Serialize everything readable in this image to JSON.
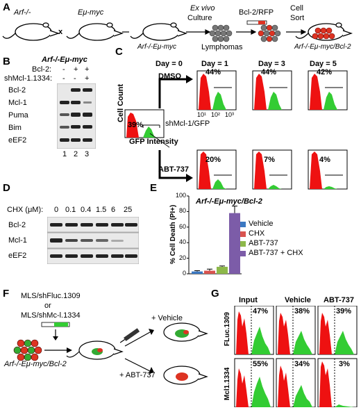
{
  "panelA": {
    "label": "A",
    "mouse1": "Arf-/-",
    "cross": "x",
    "mouse2": "Eμ-myc",
    "mouse3": "Arf-/-Eμ-myc",
    "step1": "Ex vivo",
    "step1b": "Culture",
    "lymphomas": "Lymphomas",
    "step2": "Bcl-2/RFP",
    "step3": "Cell",
    "step3b": "Sort",
    "result": "Arf-/-Eμ-myc/Bcl-2"
  },
  "panelB": {
    "label": "B",
    "title": "Arf-/-Eμ-myc",
    "row_bcl2": "Bcl-2:",
    "row_sh": "shMcl-1.1334:",
    "bcl2_signs": [
      "-",
      "+",
      "+"
    ],
    "sh_signs": [
      "-",
      "-",
      "+"
    ],
    "blots": [
      "Bcl-2",
      "Mcl-1",
      "Puma",
      "Bim",
      "eEF2"
    ],
    "lanes": [
      "1",
      "2",
      "3"
    ]
  },
  "panelC": {
    "label": "C",
    "day0": "Day = 0",
    "days": [
      "Day = 1",
      "Day = 3",
      "Day = 5"
    ],
    "dmso": "DMSO",
    "abt": "ABT-737",
    "day0_pct": "39%",
    "dmso_pcts": [
      "44%",
      "44%",
      "42%"
    ],
    "abt_pcts": [
      "20%",
      "7%",
      "4%"
    ],
    "ylabel": "Cell Count",
    "xlabel": "GFP Intensity",
    "gfp_label": "shMcl-1/GFP",
    "ticks": [
      "10¹",
      "10²",
      "10³"
    ]
  },
  "panelD": {
    "label": "D",
    "chx_label": "CHX (μM):",
    "doses": [
      "0",
      "0.1",
      "0.4",
      "1.5",
      "6",
      "25"
    ],
    "blots": [
      "Bcl-2",
      "Mcl-1",
      "eEF2"
    ]
  },
  "panelE": {
    "label": "E",
    "title": "Arf-/-Eμ-myc/Bcl-2",
    "legend": [
      "Vehicle",
      "CHX",
      "ABT-737",
      "ABT-737 + CHX"
    ],
    "colors": [
      "#3b78c2",
      "#d9534f",
      "#8db84a",
      "#7c5ca8"
    ]
  },
  "chart_data": {
    "type": "bar",
    "title": "Arf-/-Eμ-myc/Bcl-2",
    "ylabel": "% Cell Death (PI+)",
    "ylim": [
      0,
      100
    ],
    "yticks": [
      "0",
      "20",
      "40",
      "60",
      "80",
      "100"
    ],
    "categories": [
      "Vehicle",
      "CHX",
      "ABT-737",
      "ABT-737 + CHX"
    ],
    "values": [
      3,
      4,
      9,
      78
    ],
    "errors": [
      1,
      2,
      1,
      9
    ]
  },
  "panelF": {
    "label": "F",
    "line1": "MLS/shFluc.1309",
    "line2": "or",
    "line3": "MLS/shMc-l.1334",
    "vehicle": "+ Vehicle",
    "abt": "+ ABT-737",
    "cells": "Arf-/-Eμ-myc/Bcl-2"
  },
  "panelG": {
    "label": "G",
    "cols": [
      "Input",
      "Vehicle",
      "ABT-737"
    ],
    "rows": [
      "FLuc.1309",
      "Mcl1.1334"
    ],
    "pcts_row1": [
      "47%",
      "38%",
      "39%"
    ],
    "pcts_row2": [
      "55%",
      "34%",
      "3%"
    ]
  }
}
